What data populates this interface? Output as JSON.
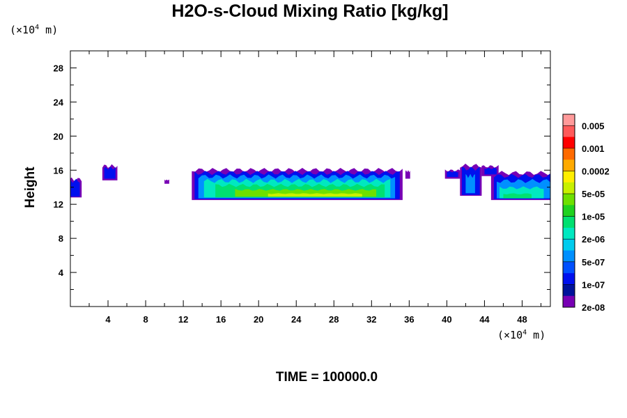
{
  "chart_data": {
    "type": "heatmap",
    "title": "H2O-s-Cloud Mixing Ratio [kg/kg]",
    "ylabel": "Height",
    "xlabel": "",
    "x_unit": "(×10⁴ m)",
    "y_unit": "(×10⁴ m)",
    "x_unit_base": "(×10",
    "x_unit_exp": "4",
    "x_unit_tail": " m)",
    "y_unit_base": "(×10",
    "y_unit_exp": "4",
    "y_unit_tail": " m)",
    "xlim": [
      0,
      51
    ],
    "ylim": [
      0,
      30
    ],
    "xticks": [
      4,
      8,
      12,
      16,
      20,
      24,
      28,
      32,
      36,
      40,
      44,
      48
    ],
    "yticks": [
      4,
      8,
      12,
      16,
      20,
      24,
      28
    ],
    "annotation": "TIME = 100000.0",
    "colorbar": {
      "labels": [
        "0.005",
        "0.001",
        "0.0002",
        "5e-05",
        "1e-05",
        "2e-06",
        "5e-07",
        "1e-07",
        "2e-08"
      ],
      "colors": [
        "#ff9a9a",
        "#ff5a5a",
        "#ff0000",
        "#ff6a00",
        "#ffaa00",
        "#ffee00",
        "#c8f000",
        "#6ee000",
        "#1fd21f",
        "#00e070",
        "#00e8c0",
        "#00ccee",
        "#0090ff",
        "#0050ff",
        "#0010ee",
        "#00129a",
        "#7800b4"
      ]
    },
    "cloud_layers": [
      {
        "level": 0,
        "color": "#7800b4",
        "regions": [
          {
            "x": [
              -0.5,
              1.2
            ],
            "bot": 12.8,
            "top": 15.2
          },
          {
            "x": [
              3.4,
              5.0
            ],
            "bot": 14.8,
            "top": 16.7
          },
          {
            "x": [
              10.0,
              10.5
            ],
            "bot": 14.4,
            "top": 14.9
          },
          {
            "x": [
              12.9,
              35.3
            ],
            "bot": 12.5,
            "top": 16.5
          },
          {
            "x": [
              35.6,
              36.1
            ],
            "bot": 15.0,
            "top": 16.0
          },
          {
            "x": [
              39.8,
              41.4
            ],
            "bot": 15.0,
            "top": 16.1
          },
          {
            "x": [
              41.4,
              43.7
            ],
            "bot": 13.0,
            "top": 17.0
          },
          {
            "x": [
              43.7,
              45.5
            ],
            "bot": 15.3,
            "top": 16.6
          },
          {
            "x": [
              44.7,
              51.5
            ],
            "bot": 12.5,
            "top": 16.1
          }
        ]
      },
      {
        "level": 1,
        "color": "#0010ee",
        "regions": [
          {
            "x": [
              -0.5,
              1.0
            ],
            "bot": 12.9,
            "top": 15.0
          },
          {
            "x": [
              3.6,
              4.8
            ],
            "bot": 15.0,
            "top": 16.4
          },
          {
            "x": [
              13.2,
              35.0
            ],
            "bot": 12.6,
            "top": 16.1
          },
          {
            "x": [
              40.0,
              41.2
            ],
            "bot": 15.2,
            "top": 15.9
          },
          {
            "x": [
              41.6,
              43.5
            ],
            "bot": 13.1,
            "top": 16.6
          },
          {
            "x": [
              44.0,
              45.3
            ],
            "bot": 15.5,
            "top": 16.3
          },
          {
            "x": [
              45.0,
              51.3
            ],
            "bot": 12.6,
            "top": 15.7
          }
        ]
      },
      {
        "level": 2,
        "color": "#0090ff",
        "regions": [
          {
            "x": [
              13.6,
              34.5
            ],
            "bot": 12.7,
            "top": 15.6
          },
          {
            "x": [
              42.0,
              43.0
            ],
            "bot": 13.3,
            "top": 15.6
          },
          {
            "x": [
              45.3,
              51.0
            ],
            "bot": 12.7,
            "top": 15.0
          }
        ]
      },
      {
        "level": 3,
        "color": "#00e8c0",
        "regions": [
          {
            "x": [
              14.2,
              34.0
            ],
            "bot": 12.8,
            "top": 15.0
          },
          {
            "x": [
              45.6,
              50.3
            ],
            "bot": 12.7,
            "top": 14.1
          }
        ]
      },
      {
        "level": 4,
        "color": "#00e070",
        "regions": [
          {
            "x": [
              15.4,
              33.4
            ],
            "bot": 12.8,
            "top": 14.4
          },
          {
            "x": [
              46.0,
              49.0
            ],
            "bot": 12.7,
            "top": 13.3
          }
        ]
      },
      {
        "level": 5,
        "color": "#6ee000",
        "regions": [
          {
            "x": [
              17.5,
              32.5
            ],
            "bot": 12.9,
            "top": 13.8
          }
        ]
      },
      {
        "level": 6,
        "color": "#c8f000",
        "regions": [
          {
            "x": [
              21.0,
              31.0
            ],
            "bot": 12.9,
            "top": 13.3
          }
        ]
      }
    ]
  }
}
